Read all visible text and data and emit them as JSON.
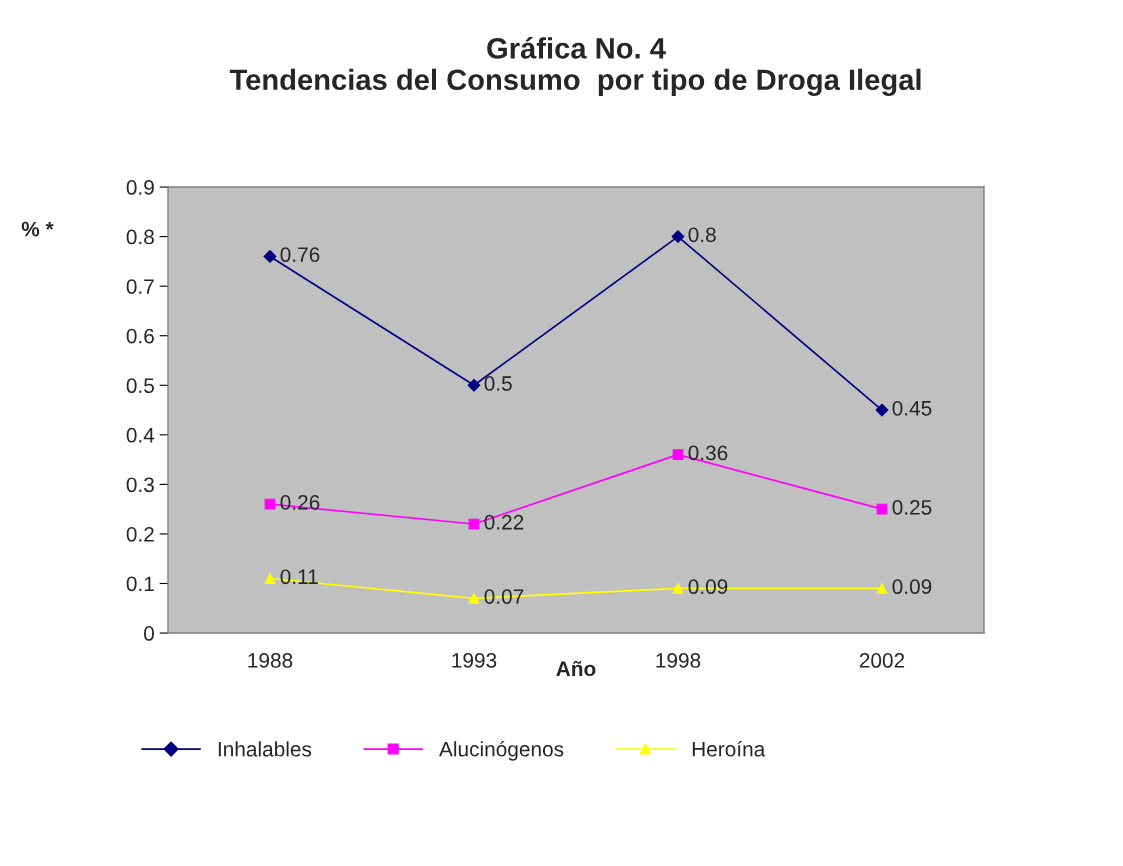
{
  "chart_data": {
    "type": "line",
    "title": "Gráfica No. 4\nTendencias del Consumo  por tipo de Droga Ilegal",
    "xlabel": "Año",
    "ylabel": "% *",
    "categories": [
      "1988",
      "1993",
      "1998",
      "2002"
    ],
    "series": [
      {
        "name": "Inhalables",
        "color": "#000080",
        "marker": "diamond",
        "values": [
          0.76,
          0.5,
          0.8,
          0.45
        ]
      },
      {
        "name": "Alucinógenos",
        "color": "#ff00ff",
        "marker": "square",
        "values": [
          0.26,
          0.22,
          0.36,
          0.25
        ]
      },
      {
        "name": "Heroína",
        "color": "#ffff00",
        "marker": "triangle",
        "values": [
          0.11,
          0.07,
          0.09,
          0.09
        ]
      }
    ],
    "ylim": [
      0,
      0.9
    ],
    "yticks": [
      0,
      0.1,
      0.2,
      0.3,
      0.4,
      0.5,
      0.6,
      0.7,
      0.8,
      0.9
    ],
    "grid": false,
    "legend": "bottom",
    "data_labels": true,
    "line_style": "solid"
  }
}
